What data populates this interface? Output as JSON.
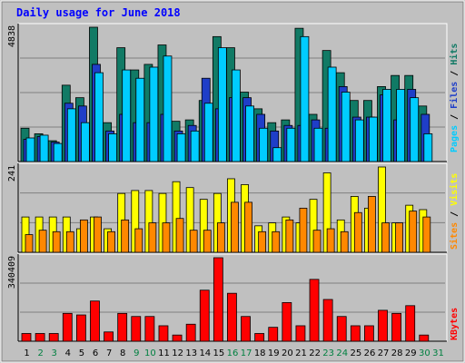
{
  "chart_data": [
    {
      "type": "bar",
      "title": "Daily usage for June 2018",
      "ymax_label": "4838",
      "series": [
        {
          "name": "Hits",
          "color": "#117a65",
          "values": [
            1200,
            1000,
            750,
            2750,
            2300,
            4838,
            1400,
            4100,
            3300,
            3500,
            4200,
            1450,
            1500,
            2200,
            4500,
            4100,
            2500,
            1900,
            1400,
            1500,
            4800,
            1700,
            4000,
            3200,
            2200,
            2200,
            2700,
            3100,
            3100,
            2000,
            0
          ]
        },
        {
          "name": "Files",
          "color": "#1f3ec8",
          "values": [
            800,
            900,
            700,
            2100,
            2000,
            3500,
            1100,
            1700,
            1400,
            1400,
            1700,
            1100,
            1300,
            3000,
            1900,
            2300,
            2300,
            1700,
            1100,
            1300,
            1300,
            1500,
            1200,
            2700,
            1600,
            1600,
            2400,
            1500,
            2600,
            1700,
            0
          ]
        },
        {
          "name": "Pages",
          "color": "#00ccff",
          "values": [
            850,
            950,
            650,
            1900,
            1400,
            3200,
            1000,
            3300,
            3000,
            3400,
            3800,
            1000,
            1100,
            2100,
            4100,
            3300,
            2000,
            1200,
            500,
            1200,
            4500,
            1200,
            3400,
            2500,
            1500,
            1600,
            2600,
            2600,
            2300,
            1000,
            0
          ]
        }
      ]
    },
    {
      "type": "bar",
      "ymax_label": "241",
      "series": [
        {
          "name": "Visits",
          "color": "#ffff00",
          "values": [
            120,
            120,
            120,
            120,
            80,
            120,
            80,
            200,
            210,
            210,
            200,
            240,
            220,
            180,
            200,
            250,
            230,
            90,
            100,
            120,
            100,
            180,
            270,
            110,
            190,
            150,
            290,
            100,
            160,
            145,
            0
          ]
        },
        {
          "name": "Sites",
          "color": "#ff8800",
          "values": [
            60,
            75,
            70,
            70,
            110,
            120,
            70,
            110,
            80,
            100,
            100,
            115,
            75,
            75,
            100,
            170,
            170,
            70,
            70,
            110,
            150,
            75,
            80,
            70,
            135,
            190,
            100,
            100,
            140,
            120,
            0
          ]
        }
      ]
    },
    {
      "type": "bar",
      "ymax_label": "340409",
      "series": [
        {
          "name": "KBytes",
          "color": "#ff0000",
          "values": [
            25,
            25,
            25,
            90,
            85,
            130,
            30,
            90,
            80,
            80,
            50,
            20,
            55,
            165,
            270,
            155,
            80,
            25,
            45,
            125,
            50,
            200,
            135,
            80,
            50,
            50,
            100,
            90,
            115,
            20,
            0
          ]
        }
      ]
    }
  ],
  "header": {
    "title": "Daily usage for June 2018"
  },
  "top_legend": [
    "Pages",
    "Files",
    "Hits"
  ],
  "mid_legend": [
    "Sites",
    "Visits"
  ],
  "bottom_legend": [
    "KBytes"
  ],
  "x_labels": [
    "1",
    "2",
    "3",
    "4",
    "5",
    "6",
    "7",
    "8",
    "9",
    "10",
    "11",
    "12",
    "13",
    "14",
    "15",
    "16",
    "17",
    "18",
    "19",
    "20",
    "21",
    "22",
    "23",
    "24",
    "25",
    "26",
    "27",
    "28",
    "29",
    "30",
    "31"
  ],
  "weekend_days": [
    2,
    3,
    9,
    10,
    16,
    17,
    23,
    24,
    30,
    31
  ],
  "colors": {
    "bg": "#c0c0c0",
    "title": "#0000ff",
    "axis": "#000000",
    "grid": "#808080",
    "weekend_label": "#008040",
    "weekday_label": "#000000"
  }
}
